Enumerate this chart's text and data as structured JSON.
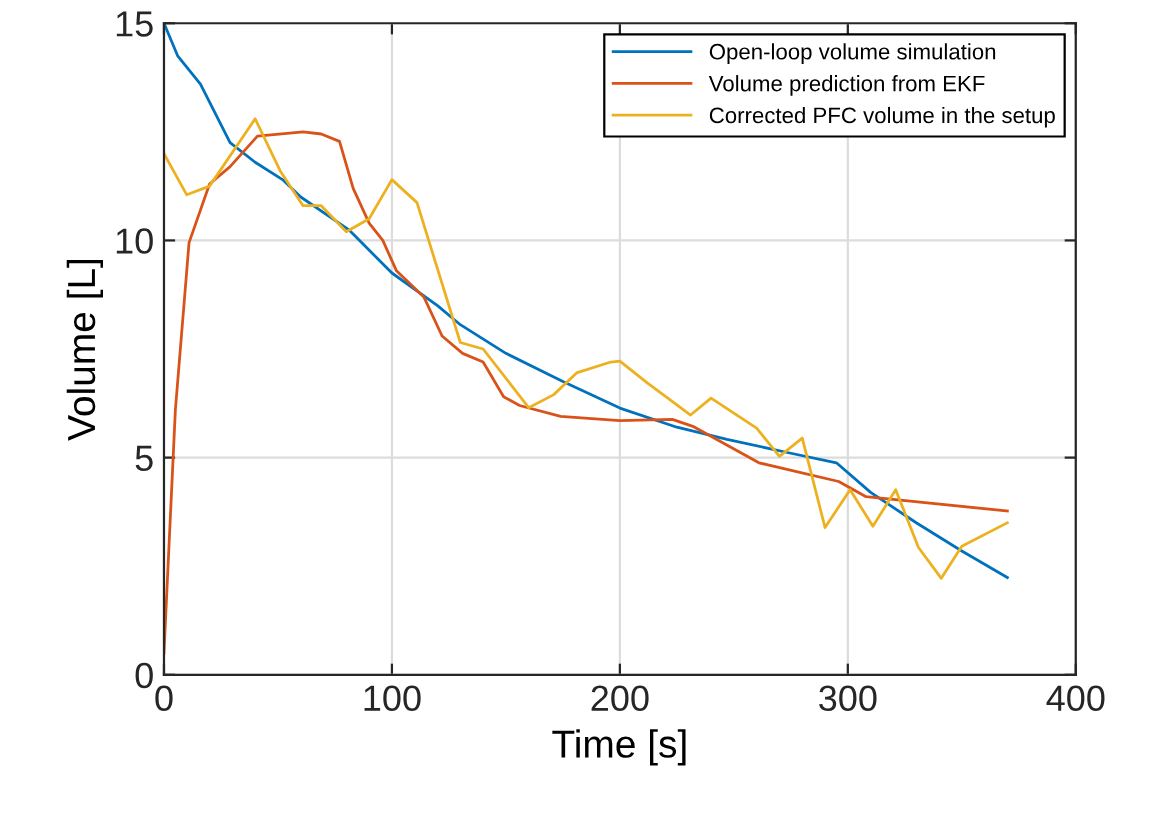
{
  "chart_data": {
    "type": "line",
    "xlabel": "Time [s]",
    "ylabel": "Volume [L]",
    "xlim": [
      0,
      400
    ],
    "xticks": [
      0,
      100,
      200,
      300,
      400
    ],
    "ylim": [
      0,
      15
    ],
    "yticks": [
      0,
      5,
      10,
      15
    ],
    "grid": true,
    "legend": "top right",
    "series": [
      {
        "name": "Open-loop volume simulation",
        "color": "#0072bd",
        "x": [
          0,
          6,
          16,
          29,
          40,
          52,
          60,
          81,
          100,
          120,
          130,
          150,
          175,
          200,
          225,
          247,
          275,
          295,
          310,
          330,
          350,
          370
        ],
        "values": [
          15,
          14.25,
          13.6,
          12.25,
          11.8,
          11.4,
          11.0,
          10.25,
          9.25,
          8.5,
          8.06,
          7.4,
          6.75,
          6.14,
          5.7,
          5.42,
          5.1,
          4.88,
          4.2,
          3.5,
          2.85,
          2.24
        ]
      },
      {
        "name": "Volume prediction from EKF",
        "color": "#d95319",
        "x": [
          0,
          5,
          11,
          20,
          29,
          41,
          61,
          69,
          77,
          83,
          90,
          96,
          102,
          114,
          122,
          131,
          140,
          149,
          156,
          174,
          200,
          223,
          232,
          261,
          296,
          308,
          370
        ],
        "values": [
          0.5,
          6.1,
          9.95,
          11.3,
          11.7,
          12.4,
          12.5,
          12.45,
          12.28,
          11.2,
          10.4,
          10.0,
          9.3,
          8.7,
          7.8,
          7.4,
          7.2,
          6.4,
          6.2,
          5.95,
          5.85,
          5.88,
          5.72,
          4.88,
          4.45,
          4.1,
          3.77
        ]
      },
      {
        "name": "Corrected PFC volume in the setup",
        "color": "#edb120",
        "x": [
          0,
          10,
          20,
          40,
          51,
          61,
          69,
          80,
          90,
          100,
          111,
          130,
          140,
          160,
          171,
          181,
          196,
          200,
          212,
          220,
          231,
          240,
          260,
          270,
          280,
          290,
          301,
          311,
          321,
          331,
          341,
          350,
          370
        ],
        "values": [
          12.0,
          11.05,
          11.25,
          12.8,
          11.6,
          10.8,
          10.8,
          10.2,
          10.5,
          11.4,
          10.87,
          7.65,
          7.5,
          6.15,
          6.45,
          6.95,
          7.2,
          7.22,
          6.72,
          6.41,
          5.98,
          6.37,
          5.68,
          5.03,
          5.45,
          3.39,
          4.26,
          3.42,
          4.26,
          2.93,
          2.22,
          2.96,
          3.5
        ]
      }
    ]
  }
}
